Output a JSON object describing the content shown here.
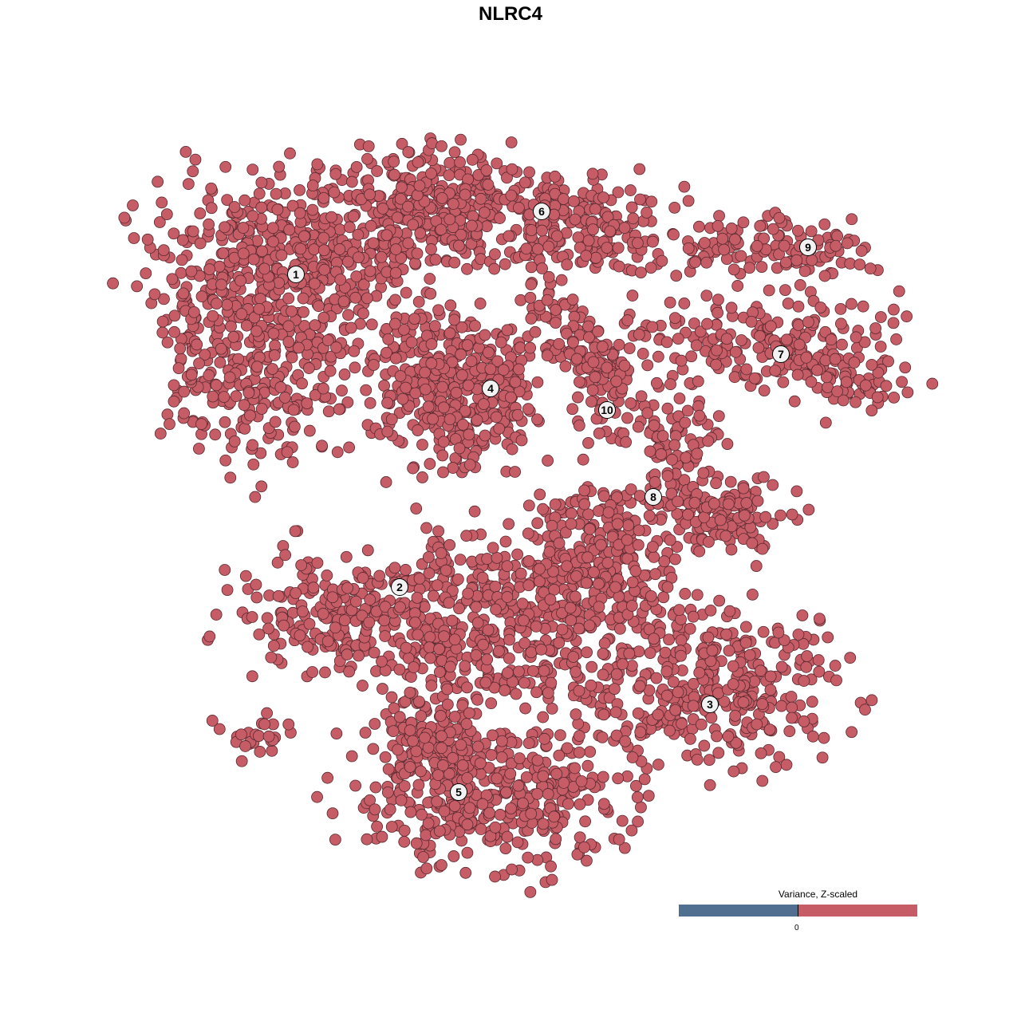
{
  "title": "NLRC4",
  "chart_data": {
    "type": "scatter",
    "title": "NLRC4",
    "xlabel": "",
    "ylabel": "",
    "axes_visible": false,
    "grid": false,
    "point_color": "#c55c66",
    "point_stroke": "#5a2a30",
    "note_points": "cells shown as clusters of points; each cluster region given as center, spread and number of cells",
    "regions": [
      {
        "cluster": "1",
        "cx": -28,
        "cy": 31,
        "sx": 14,
        "sy": 9,
        "n": 450
      },
      {
        "cluster": "1",
        "cx": -31,
        "cy": 17,
        "sx": 9,
        "sy": 10,
        "n": 250
      },
      {
        "cluster": "1",
        "cx": -40,
        "cy": 24,
        "sx": 3,
        "sy": 6,
        "n": 40
      },
      {
        "cluster": "6",
        "cx": -8,
        "cy": 38,
        "sx": 13,
        "sy": 6,
        "n": 400
      },
      {
        "cluster": "6",
        "cx": 10,
        "cy": 35,
        "sx": 9,
        "sy": 5,
        "n": 150
      },
      {
        "cluster": "6",
        "cx": 5,
        "cy": 26,
        "sx": 3,
        "sy": 5,
        "n": 40
      },
      {
        "cluster": "4",
        "cx": -6.5,
        "cy": 15,
        "sx": 8,
        "sy": 8,
        "n": 400
      },
      {
        "cluster": "10",
        "cx": 12.5,
        "cy": 16,
        "sx": 4,
        "sy": 7,
        "n": 80
      },
      {
        "cluster": "10",
        "cx": 8,
        "cy": 20,
        "sx": 5,
        "sy": 2.5,
        "n": 40
      },
      {
        "cluster": "9",
        "cx": 33,
        "cy": 33,
        "sx": 10,
        "sy": 4,
        "n": 120
      },
      {
        "cluster": "7",
        "cx": 32,
        "cy": 21,
        "sx": 13,
        "sy": 4.5,
        "n": 200
      },
      {
        "cluster": "7",
        "cx": 43,
        "cy": 16,
        "sx": 5,
        "sy": 3,
        "n": 50
      },
      {
        "cluster": "8",
        "cx": 21,
        "cy": 8,
        "sx": 4,
        "sy": 7,
        "n": 100
      },
      {
        "cluster": "8",
        "cx": 28,
        "cy": -1,
        "sx": 6,
        "sy": 4,
        "n": 120
      },
      {
        "cluster": "8",
        "cx": 12,
        "cy": 0,
        "sx": 8,
        "sy": 3,
        "n": 60
      },
      {
        "cluster": "2",
        "cx": -21,
        "cy": -13,
        "sx": 11,
        "sy": 6,
        "n": 200
      },
      {
        "cluster": "2",
        "cx": -32,
        "cy": -28,
        "sx": 4,
        "sy": 2.5,
        "n": 25
      },
      {
        "cluster": "main",
        "cx": 0,
        "cy": -14,
        "sx": 15,
        "sy": 10,
        "n": 500
      },
      {
        "cluster": "main",
        "cx": 12,
        "cy": -8,
        "sx": 8,
        "sy": 6,
        "n": 150
      },
      {
        "cluster": "3",
        "cx": 26,
        "cy": -22,
        "sx": 13,
        "sy": 8,
        "n": 350
      },
      {
        "cluster": "5",
        "cx": -2,
        "cy": -36,
        "sx": 13,
        "sy": 7,
        "n": 400
      },
      {
        "cluster": "5",
        "cx": -10,
        "cy": -28,
        "sx": 6,
        "sy": 6,
        "n": 120
      }
    ],
    "cluster_labels": [
      {
        "label": "1",
        "x": -26.9,
        "y": 29.6
      },
      {
        "label": "6",
        "x": 3.9,
        "y": 37.5
      },
      {
        "label": "9",
        "x": 37.3,
        "y": 33
      },
      {
        "label": "7",
        "x": 33.9,
        "y": 19.6
      },
      {
        "label": "4",
        "x": -2.5,
        "y": 15.3
      },
      {
        "label": "10",
        "x": 12.1,
        "y": 12.6
      },
      {
        "label": "8",
        "x": 17.9,
        "y": 1.7
      },
      {
        "label": "2",
        "x": -13.9,
        "y": -9.6
      },
      {
        "label": "3",
        "x": 25,
        "y": -24.3
      },
      {
        "label": "5",
        "x": -6.5,
        "y": -35.3
      }
    ]
  },
  "legend": {
    "title": "Variance, Z-scaled",
    "tick": "0",
    "low_color": "#516f91",
    "high_color": "#c55c66"
  }
}
